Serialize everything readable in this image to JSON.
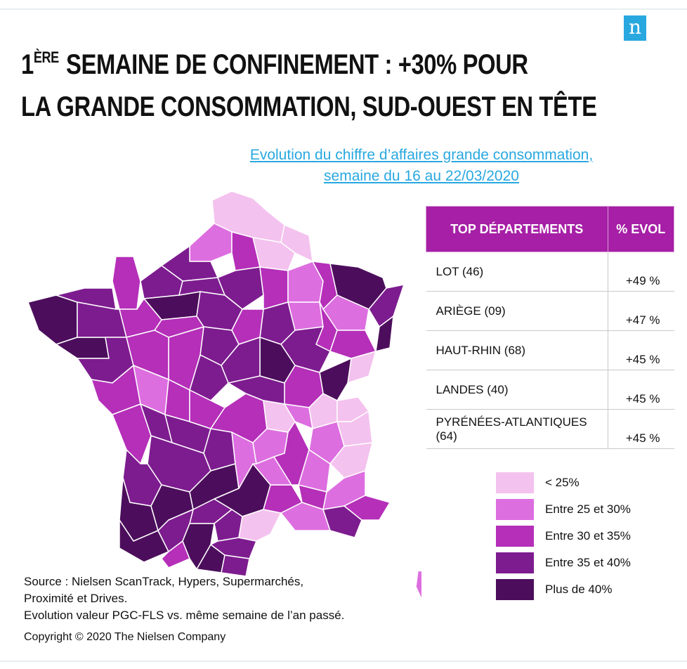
{
  "header": {
    "title_sup": "ÈRE",
    "title_line1_rest": " SEMAINE DE CONFINEMENT : +30% POUR",
    "title_line1_prefix": "1",
    "title_line2": "LA GRANDE CONSOMMATION, SUD-OUEST EN TÊTE",
    "logo_letter": "n"
  },
  "subtitle": {
    "line1": "Evolution du chiffre d’affaires grande consommation,",
    "line2": "semaine du 16 au 22/03/2020"
  },
  "table": {
    "headers": [
      "TOP DÉPARTEMENTS",
      "% EVOL"
    ],
    "rows": [
      {
        "departement": "LOT (46)",
        "evol": "+49 %"
      },
      {
        "departement": "ARIÈGE (09)",
        "evol": "+47 %"
      },
      {
        "departement": "HAUT-RHIN (68)",
        "evol": "+45 %"
      },
      {
        "departement": "LANDES (40)",
        "evol": "+45 %"
      },
      {
        "departement": "PYRÉNÉES-ATLANTIQUES (64)",
        "evol": "+45 %"
      }
    ]
  },
  "legend": [
    {
      "label": "< 25%",
      "color": "#f4c2ee"
    },
    {
      "label": "Entre 25 et 30%",
      "color": "#dd6ee0"
    },
    {
      "label": "Entre 30 et 35%",
      "color": "#b52fb9"
    },
    {
      "label": "Entre 35 et 40%",
      "color": "#7d1c8f"
    },
    {
      "label": "Plus de 40%",
      "color": "#4c0e5c"
    }
  ],
  "footnote": {
    "lines": [
      "Source : Nielsen ScanTrack, Hypers, Supermarchés,",
      "Proximité et Drives.",
      "Evolution valeur PGC-FLS vs. même semaine de l’an passé."
    ],
    "copyright": "Copyright © 2020 The Nielsen Company"
  },
  "colors": {
    "accent": "#a61fa6",
    "link": "#29a8e0"
  }
}
